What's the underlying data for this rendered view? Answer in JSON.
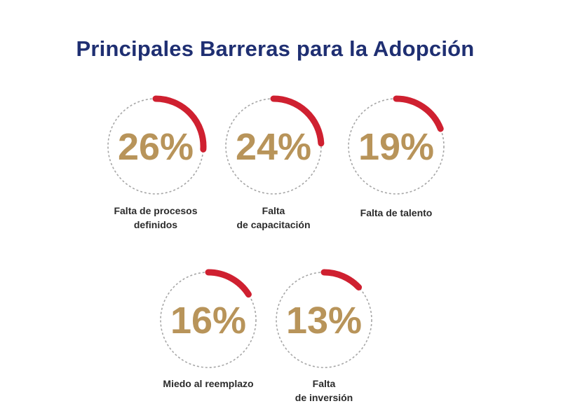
{
  "chart_data": {
    "type": "donut-progress",
    "title": "Principales Barreras para la Adopción",
    "items": [
      {
        "value": 26,
        "value_label": "26%",
        "label_lines": [
          "Falta de procesos",
          "definidos"
        ]
      },
      {
        "value": 24,
        "value_label": "24%",
        "label_lines": [
          "Falta",
          "de capacitación"
        ]
      },
      {
        "value": 19,
        "value_label": "19%",
        "label_lines": [
          "Falta de talento"
        ]
      },
      {
        "value": 16,
        "value_label": "16%",
        "label_lines": [
          "Miedo al reemplazo"
        ]
      },
      {
        "value": 13,
        "value_label": "13%",
        "label_lines": [
          "Falta",
          "de inversión"
        ]
      }
    ],
    "colors": {
      "title": "#1f2f72",
      "arc": "#cf2030",
      "track": "#a6a6a6",
      "number": "#b8945a",
      "label": "#2b2b2b"
    }
  }
}
